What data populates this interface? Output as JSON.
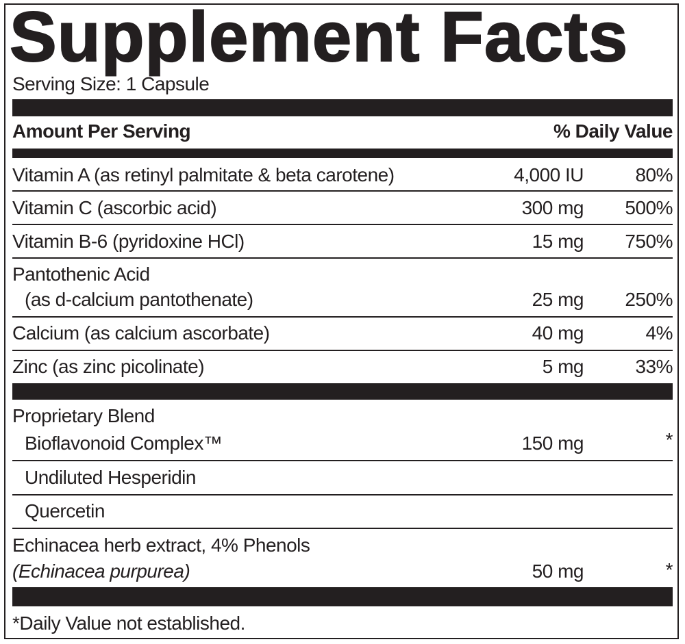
{
  "title": "Supplement Facts",
  "serving_size": "Serving Size: 1 Capsule",
  "header": {
    "amount_per_serving": "Amount Per Serving",
    "daily_value": "% Daily Value"
  },
  "nutrients": [
    {
      "name": "Vitamin A (as retinyl palmitate & beta carotene)",
      "amount": "4,000 IU",
      "dv": "80%"
    },
    {
      "name": "Vitamin C (ascorbic acid)",
      "amount": "300 mg",
      "dv": "500%"
    },
    {
      "name": "Vitamin B-6 (pyridoxine HCl)",
      "amount": "15 mg",
      "dv": "750%"
    },
    {
      "name": "Pantothenic Acid",
      "subname": "(as d-calcium pantothenate)",
      "amount": "25 mg",
      "dv": "250%"
    },
    {
      "name": "Calcium (as calcium ascorbate)",
      "amount": "40 mg",
      "dv": "4%"
    },
    {
      "name": "Zinc (as zinc picolinate)",
      "amount": "5 mg",
      "dv": "33%"
    }
  ],
  "blend": {
    "name": "Proprietary Blend",
    "subname": "Bioflavonoid Complex™",
    "amount": "150 mg",
    "dv": "*",
    "items": [
      "Undiluted Hesperidin",
      "Quercetin"
    ]
  },
  "echinacea": {
    "name": "Echinacea herb extract, 4% Phenols",
    "subname": "(Echinacea purpurea)",
    "amount": "50 mg",
    "dv": "*"
  },
  "footnote": "*Daily Value not established."
}
